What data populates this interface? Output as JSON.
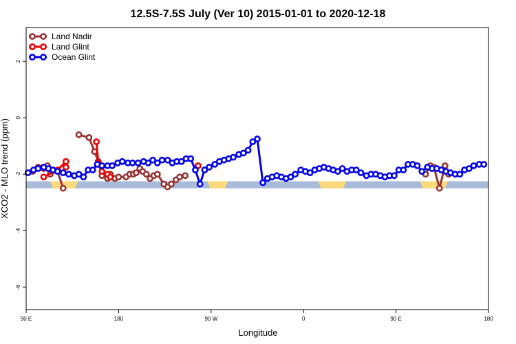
{
  "chart_data": {
    "type": "line",
    "title": "12.5S-7.5S July (Ver 10)   2015-01-01 to 2020-12-18",
    "xlabel": "Longitude",
    "ylabel": "XCO2 - MLO trend (ppm)",
    "xlim": [
      -90,
      160
    ],
    "ylim": [
      -6.8,
      3.2
    ],
    "x_ticks": [
      {
        "value": -90,
        "label": "90 E"
      },
      {
        "value": -40,
        "label": "180"
      },
      {
        "value": 10,
        "label": "90 W"
      },
      {
        "value": 60,
        "label": "0"
      },
      {
        "value": 110,
        "label": "90 E"
      },
      {
        "value": 160,
        "label": "180"
      }
    ],
    "y_ticks": [
      {
        "value": 2,
        "label": "2"
      },
      {
        "value": 0,
        "label": "0"
      },
      {
        "value": -2,
        "label": "-2"
      },
      {
        "value": -4,
        "label": "-4"
      },
      {
        "value": -6,
        "label": "-6"
      }
    ],
    "legend_position": "top-left",
    "land_band": {
      "y_top": -2.25,
      "y_bottom": -2.5,
      "color": "#a8bcd9",
      "land_color": "#fcd97a",
      "land_ranges": [
        [
          -77,
          -62
        ],
        [
          8,
          19
        ],
        [
          68,
          83
        ],
        [
          123,
          138
        ]
      ]
    },
    "series": [
      {
        "name": "Land Nadir",
        "color": "#993333",
        "x": [
          -86.5,
          -83.5,
          -80.5,
          -78.5,
          -77,
          -73,
          -70,
          -61.5,
          -56,
          -53,
          -51,
          -49,
          -46,
          -44.5,
          -42,
          -40,
          -36,
          -34,
          -32,
          -30.5,
          -28.5,
          -27,
          -25,
          -23,
          -21,
          -19,
          -15.5,
          -13.5,
          -11.5,
          -9,
          -7,
          -4,
          126,
          128.5,
          130.5,
          133.5,
          136.5,
          138.5
        ],
        "y": [
          -1.9,
          -1.75,
          -1.8,
          -1.7,
          -2.0,
          -1.9,
          -2.5,
          -0.6,
          -0.7,
          -1.2,
          -1.55,
          -2.05,
          -2.15,
          -2.0,
          -2.15,
          -2.1,
          -2.1,
          -2.0,
          -2.0,
          -1.95,
          -1.8,
          -1.9,
          -2.0,
          -2.15,
          -2.05,
          -2.0,
          -2.35,
          -2.45,
          -2.35,
          -2.2,
          -2.1,
          -2.05,
          -2.0,
          -1.7,
          -1.75,
          -2.5,
          -1.7,
          -2.0
        ],
        "segments": [
          [
            0,
            7
          ],
          [
            7,
            32
          ],
          [
            32,
            38
          ]
        ]
      },
      {
        "name": "Land Glint",
        "color": "#ee0000",
        "x": [
          -80.5,
          -73,
          -68.5,
          -68.5,
          3,
          -52,
          -51,
          -49,
          -46,
          -44.5
        ],
        "y": [
          -2.1,
          -1.85,
          -1.55,
          -1.75,
          -1.7,
          -0.85,
          -1.6,
          -1.9,
          -2.0,
          -2.1
        ],
        "segments": [
          [
            0,
            4
          ],
          [
            4,
            5
          ],
          [
            5,
            10
          ]
        ]
      },
      {
        "name": "Ocean Glint",
        "color": "#0000ee",
        "x": [
          -89,
          -86,
          -83.5,
          -80.5,
          -78,
          -75.5,
          -73,
          -70,
          -67,
          -64,
          -61.5,
          -59,
          -56.5,
          -54,
          -51.5,
          -49,
          -46,
          -43.5,
          -40.5,
          -38,
          -35,
          -32.5,
          -29.5,
          -26.5,
          -24,
          -21.5,
          -19,
          -16.5,
          -13.5,
          -11,
          -8.5,
          -6,
          -3.5,
          -1,
          1.5,
          4,
          6.5,
          9,
          12,
          14.5,
          17,
          19.5,
          22,
          25,
          27.5,
          30,
          32.5,
          35,
          38,
          40.5,
          43,
          45.5,
          48,
          50.5,
          53,
          55.5,
          58.5,
          61,
          63.5,
          66,
          68.5,
          71,
          73.5,
          76,
          78.5,
          81,
          83.5,
          86,
          88.5,
          91,
          94,
          96.5,
          99,
          101.5,
          104,
          106.5,
          109,
          111.5,
          114,
          116.5,
          119,
          121.5,
          124,
          127,
          129.5,
          132,
          134.5,
          137,
          139.5,
          142,
          144.5,
          147,
          149.5,
          152,
          155,
          157.5
        ],
        "y": [
          -1.95,
          -1.85,
          -1.8,
          -1.75,
          -1.8,
          -1.85,
          -1.9,
          -1.95,
          -2.0,
          -2.05,
          -2.0,
          -2.1,
          -1.85,
          -1.85,
          -1.65,
          -1.7,
          -1.7,
          -1.7,
          -1.6,
          -1.55,
          -1.6,
          -1.6,
          -1.6,
          -1.55,
          -1.6,
          -1.5,
          -1.6,
          -1.5,
          -1.5,
          -1.6,
          -1.55,
          -1.55,
          -1.45,
          -1.45,
          -1.85,
          -2.35,
          -1.85,
          -1.75,
          -1.65,
          -1.55,
          -1.5,
          -1.45,
          -1.4,
          -1.3,
          -1.25,
          -1.15,
          -0.85,
          -0.75,
          -2.3,
          -2.15,
          -2.1,
          -2.05,
          -2.1,
          -2.15,
          -2.1,
          -2.0,
          -1.85,
          -1.9,
          -1.95,
          -1.85,
          -1.8,
          -1.75,
          -1.8,
          -1.85,
          -1.9,
          -1.8,
          -1.9,
          -1.85,
          -1.85,
          -1.95,
          -2.05,
          -2.0,
          -2.0,
          -2.05,
          -2.1,
          -2.05,
          -2.05,
          -1.85,
          -1.85,
          -1.65,
          -1.65,
          -1.7,
          -1.9,
          -1.75,
          -1.8,
          -1.8,
          -1.85,
          -1.9,
          -1.95,
          -2.0,
          -2.0,
          -1.85,
          -1.8,
          -1.7,
          -1.65,
          -1.65
        ],
        "segments": [
          [
            0,
            96
          ]
        ]
      }
    ]
  }
}
